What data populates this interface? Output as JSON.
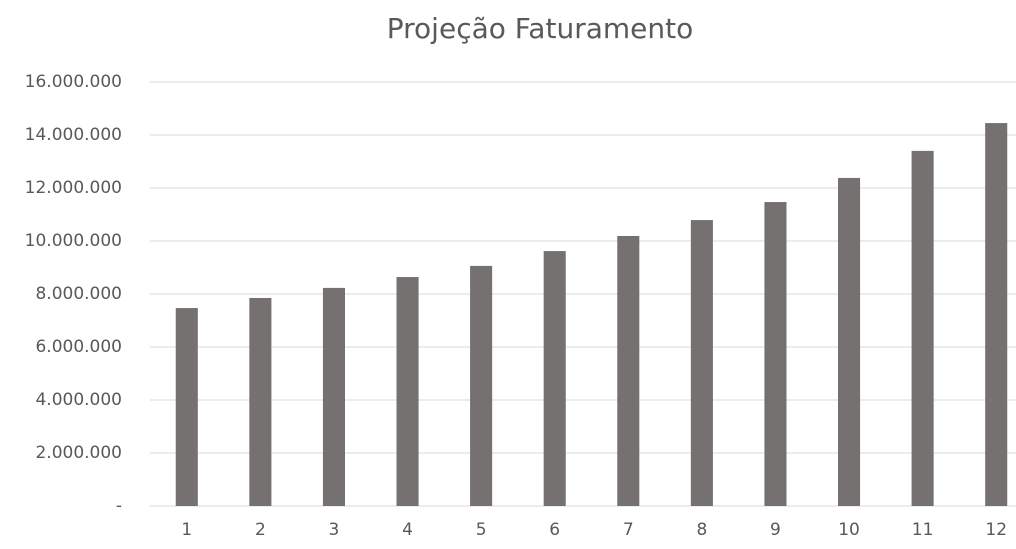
{
  "chart_data": {
    "type": "bar",
    "title": "Projeção Faturamento",
    "categories": [
      "1",
      "2",
      "3",
      "4",
      "5",
      "6",
      "7",
      "8",
      "9",
      "10",
      "11",
      "12"
    ],
    "values": [
      7470000,
      7850000,
      8230000,
      8640000,
      9060000,
      9620000,
      10190000,
      10790000,
      11470000,
      12380000,
      13400000,
      14450000
    ],
    "color": "#767171",
    "ylim": [
      0,
      16000000
    ],
    "yticks": [
      {
        "value": 0,
        "label": "-"
      },
      {
        "value": 2000000,
        "label": "2.000.000"
      },
      {
        "value": 4000000,
        "label": "4.000.000"
      },
      {
        "value": 6000000,
        "label": "6.000.000"
      },
      {
        "value": 8000000,
        "label": "8.000.000"
      },
      {
        "value": 10000000,
        "label": "10.000.000"
      },
      {
        "value": 12000000,
        "label": "12.000.000"
      },
      {
        "value": 14000000,
        "label": "14.000.000"
      },
      {
        "value": 16000000,
        "label": "16.000.000"
      }
    ],
    "grid": true
  }
}
